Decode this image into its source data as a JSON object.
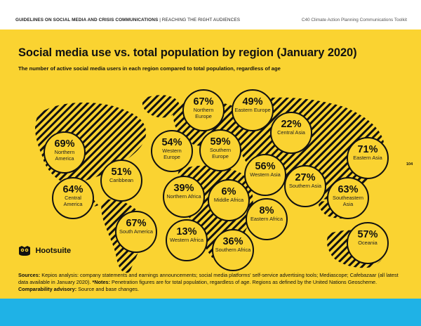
{
  "header": {
    "left_bold": "GUIDELINES ON SOCIAL MEDIA AND CRISIS COMMUNICATIONS",
    "left_rest": " | REACHING THE RIGHT AUDIENCES",
    "right": "C40 Climate Action Planning Communications Toolkit"
  },
  "title": "Social media use vs. total population by region (January 2020)",
  "subtitle": "The number of active social media users in each region compared to total population, regardless of age",
  "page_number": "104",
  "logo_text": "Hootsuite",
  "regions": [
    {
      "pct": "69%",
      "name": "Northern America"
    },
    {
      "pct": "51%",
      "name": "Caribbean"
    },
    {
      "pct": "64%",
      "name": "Central America"
    },
    {
      "pct": "67%",
      "name": "South America"
    },
    {
      "pct": "54%",
      "name": "Western Europe"
    },
    {
      "pct": "67%",
      "name": "Northern Europe"
    },
    {
      "pct": "49%",
      "name": "Eastern Europe"
    },
    {
      "pct": "59%",
      "name": "Southern Europe"
    },
    {
      "pct": "39%",
      "name": "Northern Africa"
    },
    {
      "pct": "6%",
      "name": "Middle Africa"
    },
    {
      "pct": "13%",
      "name": "Western Africa"
    },
    {
      "pct": "36%",
      "name": "Southern Africa"
    },
    {
      "pct": "8%",
      "name": "Eastern Africa"
    },
    {
      "pct": "22%",
      "name": "Central Asia"
    },
    {
      "pct": "56%",
      "name": "Western Asia"
    },
    {
      "pct": "27%",
      "name": "Southern Asia"
    },
    {
      "pct": "71%",
      "name": "Eastern Asia"
    },
    {
      "pct": "63%",
      "name": "Southeastern Asia"
    },
    {
      "pct": "57%",
      "name": "Oceania"
    }
  ],
  "sources": {
    "sources_label": "Sources:",
    "sources_text": " Kepios analysis: company statements and earnings announcements; social media platforms' self-service advertising tools; Mediascope; Cafebazaar (all latest data available in January 2020). ",
    "notes_label": "*Notes:",
    "notes_text": " Penetration figures are for total population, regardless of age. Regions as defined by the United Nations Geoscheme. ",
    "advisory_label": "Comparability advisory:",
    "advisory_text": " Source and base changes."
  },
  "colors": {
    "panel": "#fad331",
    "footer": "#1fb2e6",
    "ink": "#111111"
  }
}
